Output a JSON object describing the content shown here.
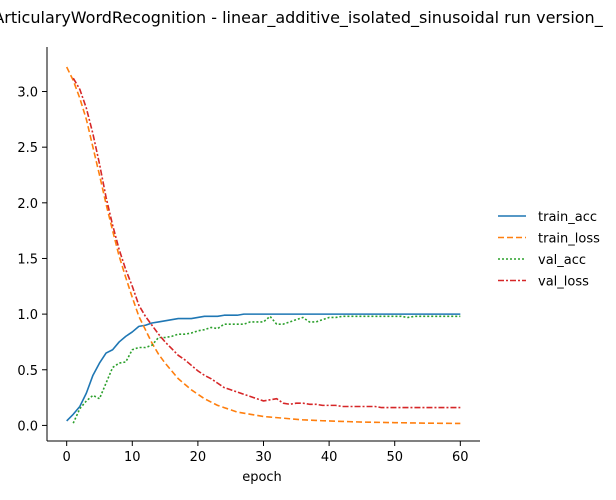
{
  "chart_data": {
    "type": "line",
    "title": "ArticularyWordRecognition - linear_additive_isolated_sinusoidal run version_",
    "xlabel": "epoch",
    "ylabel": "",
    "xlim": [
      -3,
      63
    ],
    "ylim": [
      -0.14,
      3.4
    ],
    "xticks": [
      0,
      10,
      20,
      30,
      40,
      50,
      60
    ],
    "yticks": [
      0.0,
      0.5,
      1.0,
      1.5,
      2.0,
      2.5,
      3.0
    ],
    "xtick_labels": [
      "0",
      "10",
      "20",
      "30",
      "40",
      "50",
      "60"
    ],
    "ytick_labels": [
      "0.0",
      "0.5",
      "1.0",
      "1.5",
      "2.0",
      "2.5",
      "3.0"
    ],
    "grid": false,
    "legend_position": "right",
    "series": [
      {
        "name": "train_acc",
        "color": "#1f77b4",
        "dash": "solid",
        "x": [
          0,
          1,
          2,
          3,
          4,
          5,
          6,
          7,
          8,
          9,
          10,
          11,
          12,
          13,
          14,
          15,
          16,
          17,
          18,
          19,
          20,
          21,
          22,
          23,
          24,
          25,
          26,
          27,
          28,
          29,
          30,
          31,
          32,
          33,
          34,
          35,
          36,
          37,
          38,
          39,
          40,
          41,
          42,
          43,
          44,
          45,
          46,
          47,
          48,
          49,
          50,
          51,
          52,
          53,
          54,
          55,
          56,
          57,
          58,
          59,
          60
        ],
        "y": [
          0.04,
          0.1,
          0.17,
          0.29,
          0.45,
          0.56,
          0.65,
          0.68,
          0.75,
          0.8,
          0.84,
          0.89,
          0.9,
          0.92,
          0.93,
          0.94,
          0.95,
          0.96,
          0.96,
          0.96,
          0.97,
          0.98,
          0.98,
          0.98,
          0.99,
          0.99,
          0.99,
          1.0,
          1.0,
          1.0,
          1.0,
          1.0,
          1.0,
          1.0,
          1.0,
          1.0,
          1.0,
          1.0,
          1.0,
          1.0,
          1.0,
          1.0,
          1.0,
          1.0,
          1.0,
          1.0,
          1.0,
          1.0,
          1.0,
          1.0,
          1.0,
          1.0,
          1.0,
          1.0,
          1.0,
          1.0,
          1.0,
          1.0,
          1.0,
          1.0,
          1.0
        ]
      },
      {
        "name": "train_loss",
        "color": "#ff7f0e",
        "dash": "6,3",
        "x": [
          0,
          1,
          2,
          3,
          4,
          5,
          6,
          7,
          8,
          9,
          10,
          11,
          12,
          13,
          14,
          15,
          16,
          17,
          18,
          19,
          20,
          21,
          22,
          23,
          24,
          25,
          26,
          27,
          28,
          29,
          30,
          31,
          32,
          33,
          34,
          35,
          36,
          37,
          38,
          39,
          40,
          41,
          42,
          43,
          44,
          45,
          46,
          47,
          48,
          49,
          50,
          51,
          52,
          53,
          54,
          55,
          56,
          57,
          58,
          59,
          60
        ],
        "y": [
          3.22,
          3.1,
          2.94,
          2.75,
          2.5,
          2.25,
          1.99,
          1.75,
          1.52,
          1.33,
          1.15,
          0.98,
          0.86,
          0.74,
          0.64,
          0.56,
          0.49,
          0.42,
          0.37,
          0.32,
          0.28,
          0.24,
          0.21,
          0.18,
          0.16,
          0.14,
          0.12,
          0.11,
          0.1,
          0.09,
          0.08,
          0.075,
          0.07,
          0.065,
          0.06,
          0.055,
          0.05,
          0.048,
          0.045,
          0.042,
          0.04,
          0.038,
          0.036,
          0.034,
          0.032,
          0.03,
          0.029,
          0.028,
          0.027,
          0.026,
          0.025,
          0.024,
          0.023,
          0.022,
          0.021,
          0.02,
          0.02,
          0.019,
          0.019,
          0.018,
          0.018
        ]
      },
      {
        "name": "val_acc",
        "color": "#2ca02c",
        "dash": "2,2",
        "x": [
          1,
          2,
          3,
          4,
          5,
          6,
          7,
          8,
          9,
          10,
          11,
          12,
          13,
          14,
          15,
          16,
          17,
          18,
          19,
          20,
          21,
          22,
          23,
          24,
          25,
          26,
          27,
          28,
          29,
          30,
          31,
          32,
          33,
          34,
          35,
          36,
          37,
          38,
          39,
          40,
          41,
          42,
          43,
          44,
          45,
          46,
          47,
          48,
          49,
          50,
          51,
          52,
          53,
          54,
          55,
          56,
          57,
          58,
          59,
          60
        ],
        "y": [
          0.02,
          0.15,
          0.22,
          0.27,
          0.24,
          0.38,
          0.52,
          0.56,
          0.57,
          0.68,
          0.7,
          0.7,
          0.72,
          0.79,
          0.79,
          0.8,
          0.82,
          0.82,
          0.83,
          0.85,
          0.86,
          0.88,
          0.87,
          0.91,
          0.91,
          0.91,
          0.91,
          0.93,
          0.93,
          0.93,
          0.98,
          0.91,
          0.91,
          0.93,
          0.95,
          0.97,
          0.93,
          0.93,
          0.95,
          0.97,
          0.97,
          0.98,
          0.98,
          0.98,
          0.98,
          0.98,
          0.98,
          0.98,
          0.98,
          0.98,
          0.98,
          0.97,
          0.98,
          0.98,
          0.98,
          0.98,
          0.98,
          0.98,
          0.98,
          0.98
        ]
      },
      {
        "name": "val_loss",
        "color": "#d62728",
        "dash": "6,2,2,2",
        "x": [
          1,
          2,
          3,
          4,
          5,
          6,
          7,
          8,
          9,
          10,
          11,
          12,
          13,
          14,
          15,
          16,
          17,
          18,
          19,
          20,
          21,
          22,
          23,
          24,
          25,
          26,
          27,
          28,
          29,
          30,
          31,
          32,
          33,
          34,
          35,
          36,
          37,
          38,
          39,
          40,
          41,
          42,
          43,
          44,
          45,
          46,
          47,
          48,
          49,
          50,
          51,
          52,
          53,
          54,
          55,
          56,
          57,
          58,
          59,
          60
        ],
        "y": [
          3.12,
          3.02,
          2.85,
          2.62,
          2.35,
          2.05,
          1.8,
          1.58,
          1.4,
          1.25,
          1.08,
          0.98,
          0.9,
          0.82,
          0.75,
          0.69,
          0.63,
          0.59,
          0.54,
          0.49,
          0.45,
          0.42,
          0.38,
          0.34,
          0.32,
          0.3,
          0.28,
          0.26,
          0.24,
          0.22,
          0.23,
          0.24,
          0.2,
          0.19,
          0.2,
          0.2,
          0.19,
          0.19,
          0.18,
          0.18,
          0.18,
          0.17,
          0.17,
          0.17,
          0.17,
          0.17,
          0.17,
          0.16,
          0.16,
          0.16,
          0.16,
          0.16,
          0.16,
          0.16,
          0.16,
          0.16,
          0.16,
          0.16,
          0.16,
          0.16
        ]
      }
    ]
  }
}
